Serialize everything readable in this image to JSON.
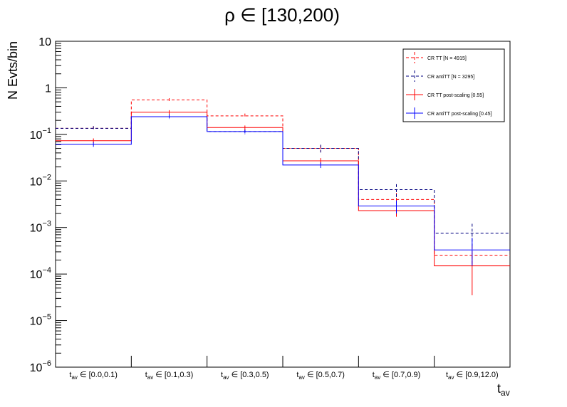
{
  "chart_data": {
    "type": "histogram-step",
    "title": "ρ ∈ [130,200)",
    "xlabel_main": "t",
    "xlabel_sub": "av",
    "ylabel": "N Evts/bin",
    "yscale": "log",
    "ylim": [
      1e-06,
      10
    ],
    "y_ticks": [
      {
        "base": "10",
        "exp": "",
        "value": 10
      },
      {
        "base": "1",
        "exp": "",
        "value": 1
      },
      {
        "base": "10",
        "exp": "−1",
        "value": 0.1
      },
      {
        "base": "10",
        "exp": "−2",
        "value": 0.01
      },
      {
        "base": "10",
        "exp": "−3",
        "value": 0.001
      },
      {
        "base": "10",
        "exp": "−4",
        "value": 0.0001
      },
      {
        "base": "10",
        "exp": "−5",
        "value": 1e-05
      },
      {
        "base": "10",
        "exp": "−6",
        "value": 1e-06
      }
    ],
    "categories": [
      {
        "pre": "t",
        "sub": "av",
        "post": " ∈ [0.0,0.1)"
      },
      {
        "pre": "t",
        "sub": "av",
        "post": " ∈ [0.1,0.3)"
      },
      {
        "pre": "t",
        "sub": "av",
        "post": " ∈ [0.3,0.5)"
      },
      {
        "pre": "t",
        "sub": "av",
        "post": " ∈ [0.5,0.7)"
      },
      {
        "pre": "t",
        "sub": "av",
        "post": " ∈ [0.7,0.9)"
      },
      {
        "pre": "t",
        "sub": "av",
        "post": " ∈ [0.9,12.0)"
      }
    ],
    "series": [
      {
        "name": "CR TT [N = 4915]",
        "color": "#ff0000",
        "dashed": true,
        "values": [
          0.135,
          0.55,
          0.25,
          0.05,
          0.004,
          0.00025
        ],
        "err_lo": [
          0.12,
          0.5,
          0.22,
          0.042,
          0.0028,
          0.00015
        ],
        "err_hi": [
          0.15,
          0.6,
          0.28,
          0.058,
          0.0055,
          0.0004
        ]
      },
      {
        "name": "CR antiTT [N = 3295]",
        "color": "#000080",
        "dashed": true,
        "values": [
          0.135,
          0.24,
          0.115,
          0.05,
          0.0065,
          0.00075
        ],
        "err_lo": [
          0.12,
          0.21,
          0.1,
          0.04,
          0.0045,
          0.0004
        ],
        "err_hi": [
          0.15,
          0.27,
          0.13,
          0.06,
          0.0085,
          0.0012
        ]
      },
      {
        "name": "CR TT post-scaling [0.55]",
        "color": "#ff0000",
        "dashed": false,
        "values": [
          0.073,
          0.3,
          0.14,
          0.027,
          0.0023,
          0.00015
        ],
        "err_lo": [
          0.065,
          0.27,
          0.125,
          0.023,
          0.0017,
          3.5e-05
        ],
        "err_hi": [
          0.082,
          0.33,
          0.155,
          0.031,
          0.003,
          0.00028
        ]
      },
      {
        "name": "CR antiTT post-scaling [0.45]",
        "color": "#0000ff",
        "dashed": false,
        "values": [
          0.061,
          0.24,
          0.115,
          0.022,
          0.0029,
          0.00033
        ],
        "err_lo": [
          0.054,
          0.22,
          0.105,
          0.019,
          0.002,
          0.00015
        ],
        "err_hi": [
          0.068,
          0.26,
          0.125,
          0.025,
          0.0038,
          0.0006
        ]
      }
    ],
    "legend": "top-right",
    "grid": false
  }
}
